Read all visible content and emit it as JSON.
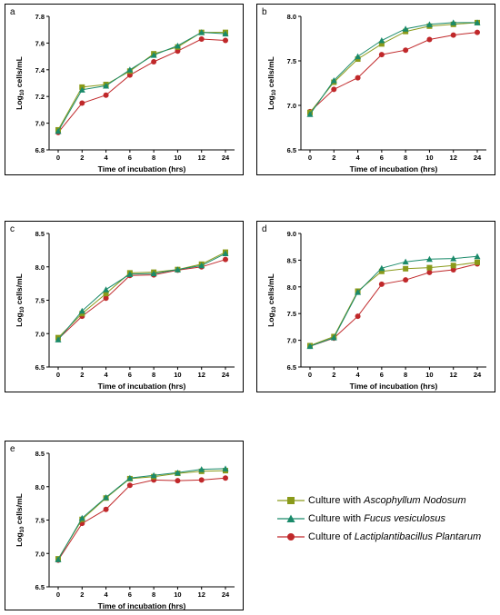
{
  "chart_data": [
    {
      "panel": "a",
      "type": "line",
      "categories": [
        "0",
        "2",
        "4",
        "6",
        "8",
        "10",
        "12",
        "24"
      ],
      "xlabel": "Time of incubation (hrs)",
      "ylabel": "Log10 cells/mL",
      "ylim": [
        6.8,
        7.8
      ],
      "yticks": [
        "6.8",
        "7.0",
        "7.2",
        "7.4",
        "7.6",
        "7.8"
      ],
      "series": [
        {
          "key": "ascophyllum",
          "values": [
            6.95,
            7.27,
            7.29,
            7.39,
            7.52,
            7.57,
            7.68,
            7.68
          ]
        },
        {
          "key": "fucus",
          "values": [
            6.94,
            7.25,
            7.28,
            7.4,
            7.51,
            7.58,
            7.68,
            7.67
          ]
        },
        {
          "key": "lacto",
          "values": [
            6.93,
            7.15,
            7.21,
            7.36,
            7.46,
            7.54,
            7.63,
            7.62
          ]
        }
      ]
    },
    {
      "panel": "b",
      "type": "line",
      "categories": [
        "0",
        "2",
        "4",
        "6",
        "8",
        "10",
        "12",
        "24"
      ],
      "xlabel": "Time of incubation (hrs)",
      "ylabel": "Log10 cells/mL",
      "ylim": [
        6.5,
        8.0
      ],
      "yticks": [
        "6.5",
        "7.0",
        "7.5",
        "8.0"
      ],
      "series": [
        {
          "key": "ascophyllum",
          "values": [
            6.92,
            7.26,
            7.52,
            7.69,
            7.83,
            7.89,
            7.91,
            7.93
          ]
        },
        {
          "key": "fucus",
          "values": [
            6.9,
            7.28,
            7.55,
            7.73,
            7.86,
            7.91,
            7.93,
            7.93
          ]
        },
        {
          "key": "lacto",
          "values": [
            6.93,
            7.18,
            7.31,
            7.57,
            7.62,
            7.74,
            7.79,
            7.82
          ]
        }
      ]
    },
    {
      "panel": "c",
      "type": "line",
      "categories": [
        "0",
        "2",
        "4",
        "6",
        "8",
        "10",
        "12",
        "24"
      ],
      "xlabel": "Time of incubation (hrs)",
      "ylabel": "Log10 cells/mL",
      "ylim": [
        6.5,
        8.5
      ],
      "yticks": [
        "6.5",
        "7.0",
        "7.5",
        "8.0",
        "8.5"
      ],
      "series": [
        {
          "key": "ascophyllum",
          "values": [
            6.94,
            7.3,
            7.6,
            7.91,
            7.92,
            7.96,
            8.04,
            8.22
          ]
        },
        {
          "key": "fucus",
          "values": [
            6.91,
            7.34,
            7.66,
            7.89,
            7.9,
            7.96,
            8.02,
            8.2
          ]
        },
        {
          "key": "lacto",
          "values": [
            6.92,
            7.26,
            7.53,
            7.87,
            7.88,
            7.95,
            8.0,
            8.11
          ]
        }
      ]
    },
    {
      "panel": "d",
      "type": "line",
      "categories": [
        "0",
        "2",
        "4",
        "6",
        "8",
        "10",
        "12",
        "24"
      ],
      "xlabel": "Time of incubation (hrs)",
      "ylabel": "Log10 cells/mL",
      "ylim": [
        6.5,
        9.0
      ],
      "yticks": [
        "6.5",
        "7.0",
        "7.5",
        "8.0",
        "8.5",
        "9.0"
      ],
      "series": [
        {
          "key": "ascophyllum",
          "values": [
            6.9,
            7.07,
            7.92,
            8.29,
            8.34,
            8.36,
            8.4,
            8.46
          ]
        },
        {
          "key": "fucus",
          "values": [
            6.89,
            7.05,
            7.9,
            8.35,
            8.47,
            8.52,
            8.53,
            8.57
          ]
        },
        {
          "key": "lacto",
          "values": [
            6.89,
            7.04,
            7.45,
            8.05,
            8.13,
            8.27,
            8.32,
            8.43
          ]
        }
      ]
    },
    {
      "panel": "e",
      "type": "line",
      "categories": [
        "0",
        "2",
        "4",
        "6",
        "8",
        "10",
        "12",
        "24"
      ],
      "xlabel": "Time of incubation (hrs)",
      "ylabel": "Log10 cells/mL",
      "ylim": [
        6.5,
        8.5
      ],
      "yticks": [
        "6.5",
        "7.0",
        "7.5",
        "8.0",
        "8.5"
      ],
      "series": [
        {
          "key": "ascophyllum",
          "values": [
            6.92,
            7.51,
            7.83,
            8.12,
            8.15,
            8.2,
            8.23,
            8.24
          ]
        },
        {
          "key": "fucus",
          "values": [
            6.91,
            7.53,
            7.84,
            8.13,
            8.17,
            8.21,
            8.26,
            8.27
          ]
        },
        {
          "key": "lacto",
          "values": [
            6.9,
            7.45,
            7.66,
            8.02,
            8.1,
            8.09,
            8.1,
            8.13
          ]
        }
      ]
    }
  ],
  "styles": {
    "ascophyllum": {
      "color": "#8a9a1a",
      "marker": "square"
    },
    "fucus": {
      "color": "#1a8a6a",
      "marker": "triangle"
    },
    "lacto": {
      "color": "#c0282a",
      "marker": "circle"
    }
  },
  "legend": {
    "placement": "right of panel e",
    "ascophyllum": {
      "prefix": "Culture with ",
      "species": "Ascophyllum Nodosum"
    },
    "fucus": {
      "prefix": "Culture with ",
      "species": "Fucus vesiculosus"
    },
    "lacto": {
      "prefix": "Culture of ",
      "species": "Lactiplantibacillus Plantarum"
    }
  }
}
